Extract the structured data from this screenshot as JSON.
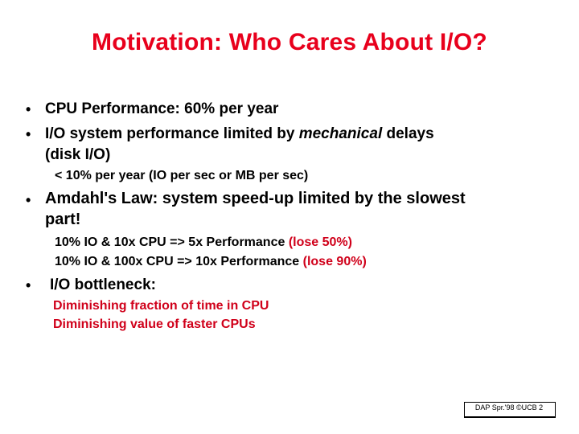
{
  "slide": {
    "title": "Motivation: Who Cares About I/O?",
    "bullet_char": "•",
    "bullets": [
      {
        "text": "CPU Performance: 60% per year"
      },
      {
        "text_before": "I/O system performance limited by ",
        "text_italic": "mechanical",
        "text_after": " delays"
      },
      {
        "text": "(disk I/O)"
      },
      {
        "text": "< 10% per year (IO per sec or MB per sec)"
      },
      {
        "text": "Amdahl's Law: system speed-up limited by the slowest"
      },
      {
        "text": "part!"
      },
      {
        "text": "10%  IO &   10x CPU =>   5x Performance",
        "note": "(lose 50%)"
      },
      {
        "text": "10%  IO &  100x CPU => 10x Performance",
        "note": "(lose 90%)"
      },
      {
        "text": "I/O bottleneck:"
      },
      {
        "text": "Diminishing fraction of time in CPU"
      },
      {
        "text": "Diminishing value of faster CPUs"
      }
    ],
    "footer": "DAP Spr.'98 ©UCB 2"
  },
  "colors": {
    "title": "#e8001c",
    "red_text": "#d0001a"
  }
}
